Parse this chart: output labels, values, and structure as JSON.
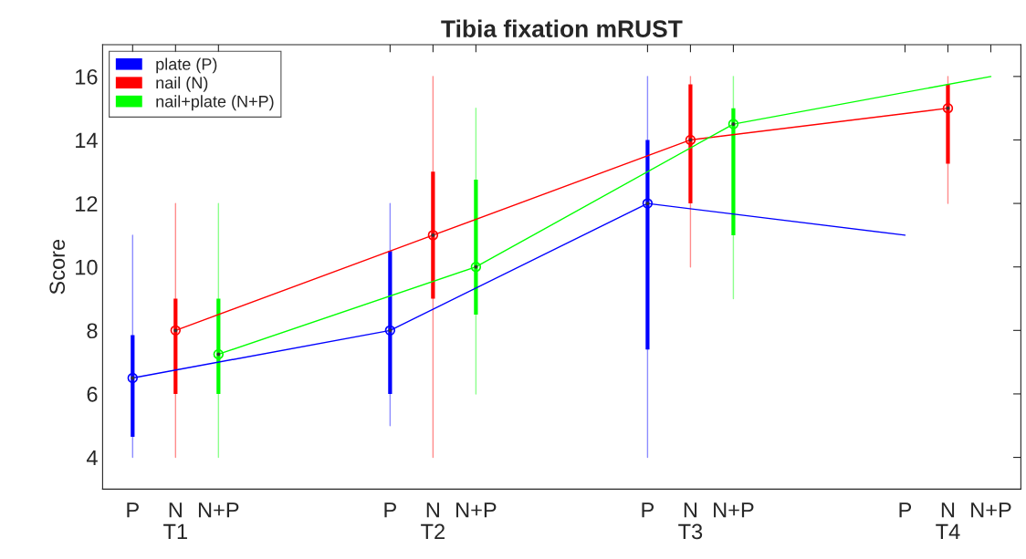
{
  "chart_data": {
    "type": "box",
    "title": "Tibia fixation mRUST",
    "ylabel": "Score",
    "categories": [
      "P",
      "N\nT1",
      "N+P",
      null,
      null,
      null,
      "P",
      "N\nT2",
      "N+P",
      null,
      null,
      null,
      "P",
      "N\nT3",
      "N+P",
      null,
      null,
      null,
      "P",
      "N\nT4",
      "N+P"
    ],
    "ylim": [
      3,
      17
    ],
    "yticks": [
      4,
      6,
      8,
      10,
      12,
      14,
      16
    ],
    "legend": "top left",
    "grid": false,
    "series": [
      {
        "name": "plate (P)",
        "color": "#0000ff",
        "boxes": [
          {
            "low": 4,
            "q1": 4.65,
            "median": 6.5,
            "q3": 7.85,
            "high": 11
          },
          null,
          null,
          null,
          null,
          null,
          {
            "low": 5,
            "q1": 6,
            "median": 8,
            "q3": 10.5,
            "high": 12
          },
          null,
          null,
          null,
          null,
          null,
          {
            "low": 4,
            "q1": 7.4,
            "median": 12,
            "q3": 14,
            "high": 16
          },
          null,
          null,
          null,
          null,
          null,
          null,
          null,
          null
        ]
      },
      {
        "name": "nail (N)",
        "color": "#ff0000",
        "boxes": [
          null,
          {
            "low": 4,
            "q1": 6,
            "median": 8,
            "q3": 9,
            "high": 12
          },
          null,
          null,
          null,
          null,
          null,
          {
            "low": 4,
            "q1": 9,
            "median": 11,
            "q3": 13,
            "high": 16
          },
          null,
          null,
          null,
          null,
          null,
          {
            "low": 10,
            "q1": 12,
            "median": 14,
            "q3": 15.75,
            "high": 16
          },
          null,
          null,
          null,
          null,
          null,
          {
            "low": 12,
            "q1": 13.25,
            "median": 15,
            "q3": 15.75,
            "high": 16
          },
          null
        ]
      },
      {
        "name": "nail+plate (N+P)",
        "color": "#00ff00",
        "boxes": [
          null,
          null,
          {
            "low": 4,
            "q1": 6,
            "median": 7.25,
            "q3": 9,
            "high": 12
          },
          null,
          null,
          null,
          null,
          null,
          {
            "low": 6,
            "q1": 8.5,
            "median": 10,
            "q3": 12.75,
            "high": 15
          },
          null,
          null,
          null,
          null,
          null,
          {
            "low": 9,
            "q1": 11,
            "median": 14.5,
            "q3": 15,
            "high": 16
          },
          null,
          null,
          null,
          null,
          null,
          null
        ]
      },
      {
        "type": "line",
        "color": "#0000ff",
        "line_style": "solid",
        "values": [
          6.5,
          null,
          null,
          null,
          null,
          null,
          8,
          null,
          null,
          null,
          null,
          null,
          12,
          null,
          null,
          null,
          null,
          null,
          11,
          null,
          null
        ]
      },
      {
        "type": "line",
        "color": "#ff0000",
        "line_style": "solid",
        "values": [
          null,
          8,
          null,
          null,
          null,
          null,
          null,
          11,
          null,
          null,
          null,
          null,
          null,
          14,
          null,
          null,
          null,
          null,
          null,
          15,
          null
        ]
      },
      {
        "type": "line",
        "color": "#00ff00",
        "line_style": "solid",
        "values": [
          null,
          null,
          7.25,
          null,
          null,
          null,
          null,
          null,
          10,
          null,
          null,
          null,
          null,
          null,
          14.5,
          null,
          null,
          null,
          null,
          null,
          16
        ]
      }
    ]
  }
}
